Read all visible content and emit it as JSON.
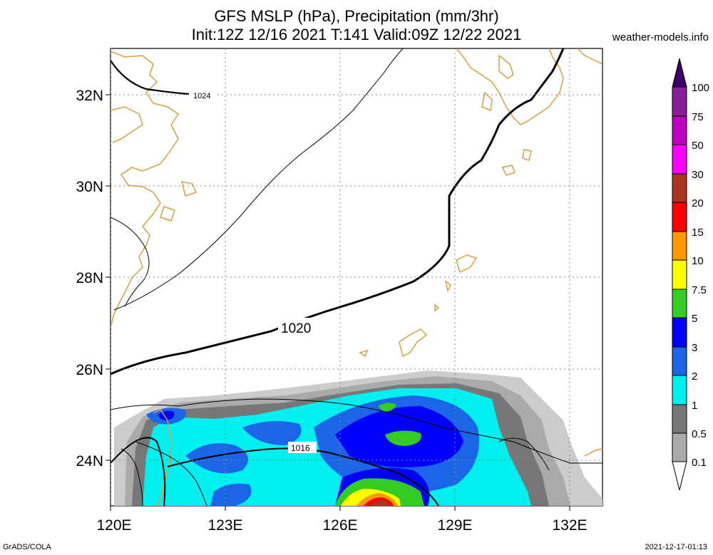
{
  "header": {
    "title_line1": "GFS MSLP (hPa), Precipitation (mm/3hr)",
    "title_line2": "Init:12Z 12/16 2021 T:141 Valid:09Z 12/22 2021",
    "site": "weather-models.info"
  },
  "footer": {
    "left": "GrADS/COLA",
    "right": "2021-12-17-01:13"
  },
  "map": {
    "lat_labels": [
      "32N",
      "30N",
      "28N",
      "26N",
      "24N"
    ],
    "lon_labels": [
      "120E",
      "123E",
      "126E",
      "129E",
      "132E"
    ],
    "isobar_labels": [
      "1024",
      "1020",
      "1016"
    ]
  },
  "colorbar": {
    "labels": [
      "100",
      "75",
      "50",
      "30",
      "20",
      "15",
      "10",
      "7.5",
      "5",
      "3",
      "2",
      "1",
      "0.5",
      "0.1"
    ],
    "colors": [
      "#8a1f99",
      "#c000c0",
      "#ff00ff",
      "#aa3322",
      "#ff0000",
      "#ff9900",
      "#ffff00",
      "#33cc22",
      "#0000ff",
      "#1a66e6",
      "#00f0f0",
      "#777777",
      "#aaaaaa",
      "#cccccc"
    ],
    "top_arrow_color": "#3d0066"
  },
  "colors": {
    "coast": "#d4a040",
    "grid": "#888888",
    "isobar": "#000000"
  }
}
